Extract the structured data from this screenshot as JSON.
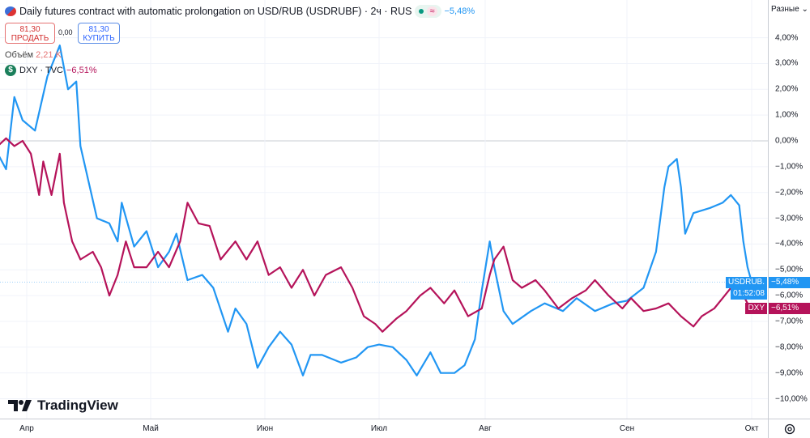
{
  "header": {
    "title": "Daily futures contract with automatic prolongation on USD/RUB (USDRUBF) · 2ч · RUS",
    "change": "−5,48%",
    "approx_symbol": "≈",
    "sell": {
      "price": "81,30",
      "label": "ПРОДАТЬ"
    },
    "spread": "0,00",
    "buy": {
      "price": "81,30",
      "label": "КУПИТЬ"
    },
    "volume_label": "Объём",
    "volume_value": "2,21 K",
    "compare": {
      "icon": "dollar-icon",
      "symbol_text": "$",
      "label": "DXY · TVC",
      "change": "−6,51%"
    }
  },
  "scale_mode": "Разные",
  "logo": "TradingView",
  "colors": {
    "usdrub": "#2196f3",
    "dxy": "#b5135a",
    "grid": "#f0f3fa"
  },
  "chart_data": {
    "type": "line",
    "ylabel": "",
    "ylim": [
      -10.5,
      4.5
    ],
    "y_ticks": [
      "4,00%",
      "3,00%",
      "2,00%",
      "1,00%",
      "0,00%",
      "−1,00%",
      "−2,00%",
      "−3,00%",
      "−4,00%",
      "−5,00%",
      "−6,00%",
      "−7,00%",
      "−8,00%",
      "−9,00%",
      "−10,00%"
    ],
    "y_tick_values": [
      4,
      3,
      2,
      1,
      0,
      -1,
      -2,
      -3,
      -4,
      -5,
      -6,
      -7,
      -8,
      -9,
      -10
    ],
    "x_ticks": [
      "Апр",
      "Май",
      "Июн",
      "Июл",
      "Авг",
      "Сен",
      "Окт"
    ],
    "x_tick_dates": [
      "04-01",
      "05-01",
      "06-01",
      "07-01",
      "08-01",
      "09-01",
      "10-01"
    ],
    "grid": true,
    "series": [
      {
        "name": "USDRUB.",
        "color": "#2196f3",
        "last_label": "−5,48%",
        "last_time": "01:52:08",
        "points": [
          [
            "03-25",
            -0.5
          ],
          [
            "03-27",
            -1.1
          ],
          [
            "03-29",
            1.7
          ],
          [
            "03-31",
            0.8
          ],
          [
            "04-03",
            0.4
          ],
          [
            "04-06",
            2.5
          ],
          [
            "04-09",
            3.7
          ],
          [
            "04-11",
            2.0
          ],
          [
            "04-13",
            2.3
          ],
          [
            "04-14",
            -0.2
          ],
          [
            "04-16",
            -1.6
          ],
          [
            "04-18",
            -3.0
          ],
          [
            "04-21",
            -3.2
          ],
          [
            "04-23",
            -3.9
          ],
          [
            "04-24",
            -2.4
          ],
          [
            "04-27",
            -4.1
          ],
          [
            "04-30",
            -3.5
          ],
          [
            "05-03",
            -4.9
          ],
          [
            "05-06",
            -4.3
          ],
          [
            "05-08",
            -3.6
          ],
          [
            "05-11",
            -5.4
          ],
          [
            "05-15",
            -5.2
          ],
          [
            "05-18",
            -5.7
          ],
          [
            "05-22",
            -7.4
          ],
          [
            "05-24",
            -6.5
          ],
          [
            "05-27",
            -7.1
          ],
          [
            "05-30",
            -8.8
          ],
          [
            "06-02",
            -8.0
          ],
          [
            "06-05",
            -7.4
          ],
          [
            "06-08",
            -7.9
          ],
          [
            "06-11",
            -9.1
          ],
          [
            "06-13",
            -8.3
          ],
          [
            "06-16",
            -8.3
          ],
          [
            "06-21",
            -8.6
          ],
          [
            "06-25",
            -8.4
          ],
          [
            "06-28",
            -8.0
          ],
          [
            "07-01",
            -7.9
          ],
          [
            "07-05",
            -8.0
          ],
          [
            "07-09",
            -8.5
          ],
          [
            "07-12",
            -9.1
          ],
          [
            "07-16",
            -8.2
          ],
          [
            "07-19",
            -9.0
          ],
          [
            "07-23",
            -9.0
          ],
          [
            "07-26",
            -8.7
          ],
          [
            "07-29",
            -7.7
          ],
          [
            "07-31",
            -5.8
          ],
          [
            "08-02",
            -3.9
          ],
          [
            "08-03",
            -4.9
          ],
          [
            "08-05",
            -6.6
          ],
          [
            "08-07",
            -7.1
          ],
          [
            "08-11",
            -6.6
          ],
          [
            "08-14",
            -6.3
          ],
          [
            "08-18",
            -6.6
          ],
          [
            "08-21",
            -6.1
          ],
          [
            "08-25",
            -6.6
          ],
          [
            "08-29",
            -6.3
          ],
          [
            "09-01",
            -6.2
          ],
          [
            "09-05",
            -5.7
          ],
          [
            "09-08",
            -4.3
          ],
          [
            "09-10",
            -1.8
          ],
          [
            "09-11",
            -1.0
          ],
          [
            "09-13",
            -0.7
          ],
          [
            "09-14",
            -1.8
          ],
          [
            "09-15",
            -3.6
          ],
          [
            "09-17",
            -2.8
          ],
          [
            "09-21",
            -2.6
          ],
          [
            "09-24",
            -2.4
          ],
          [
            "09-26",
            -2.1
          ],
          [
            "09-28",
            -2.5
          ],
          [
            "09-29",
            -3.9
          ],
          [
            "09-30",
            -4.9
          ],
          [
            "10-01",
            -5.48
          ]
        ]
      },
      {
        "name": "DXY",
        "color": "#b5135a",
        "last_label": "−6,51%",
        "points": [
          [
            "03-25",
            -0.2
          ],
          [
            "03-27",
            0.1
          ],
          [
            "03-29",
            -0.2
          ],
          [
            "03-31",
            0.0
          ],
          [
            "04-02",
            -0.5
          ],
          [
            "04-04",
            -2.1
          ],
          [
            "04-05",
            -0.8
          ],
          [
            "04-07",
            -2.1
          ],
          [
            "04-09",
            -0.5
          ],
          [
            "04-10",
            -2.4
          ],
          [
            "04-12",
            -3.9
          ],
          [
            "04-14",
            -4.6
          ],
          [
            "04-17",
            -4.3
          ],
          [
            "04-19",
            -4.9
          ],
          [
            "04-21",
            -6.0
          ],
          [
            "04-23",
            -5.2
          ],
          [
            "04-25",
            -3.9
          ],
          [
            "04-27",
            -4.9
          ],
          [
            "04-30",
            -4.9
          ],
          [
            "05-03",
            -4.3
          ],
          [
            "05-06",
            -4.9
          ],
          [
            "05-09",
            -3.9
          ],
          [
            "05-11",
            -2.4
          ],
          [
            "05-14",
            -3.2
          ],
          [
            "05-17",
            -3.3
          ],
          [
            "05-20",
            -4.6
          ],
          [
            "05-24",
            -3.9
          ],
          [
            "05-27",
            -4.6
          ],
          [
            "05-30",
            -3.9
          ],
          [
            "06-02",
            -5.2
          ],
          [
            "06-05",
            -4.9
          ],
          [
            "06-08",
            -5.7
          ],
          [
            "06-11",
            -5.0
          ],
          [
            "06-14",
            -6.0
          ],
          [
            "06-17",
            -5.2
          ],
          [
            "06-21",
            -4.9
          ],
          [
            "06-24",
            -5.7
          ],
          [
            "06-27",
            -6.8
          ],
          [
            "06-30",
            -7.1
          ],
          [
            "07-02",
            -7.4
          ],
          [
            "07-06",
            -6.9
          ],
          [
            "07-09",
            -6.6
          ],
          [
            "07-13",
            -6.0
          ],
          [
            "07-16",
            -5.7
          ],
          [
            "07-20",
            -6.3
          ],
          [
            "07-23",
            -5.8
          ],
          [
            "07-27",
            -6.8
          ],
          [
            "07-31",
            -6.5
          ],
          [
            "08-02",
            -5.2
          ],
          [
            "08-03",
            -4.6
          ],
          [
            "08-05",
            -4.1
          ],
          [
            "08-07",
            -5.4
          ],
          [
            "08-09",
            -5.7
          ],
          [
            "08-12",
            -5.4
          ],
          [
            "08-14",
            -5.8
          ],
          [
            "08-17",
            -6.5
          ],
          [
            "08-20",
            -6.1
          ],
          [
            "08-23",
            -5.8
          ],
          [
            "08-25",
            -5.4
          ],
          [
            "08-28",
            -6.0
          ],
          [
            "08-31",
            -6.5
          ],
          [
            "09-02",
            -6.1
          ],
          [
            "09-05",
            -6.6
          ],
          [
            "09-08",
            -6.5
          ],
          [
            "09-11",
            -6.3
          ],
          [
            "09-14",
            -6.8
          ],
          [
            "09-17",
            -7.2
          ],
          [
            "09-19",
            -6.8
          ],
          [
            "09-22",
            -6.5
          ],
          [
            "09-24",
            -6.1
          ],
          [
            "09-27",
            -5.5
          ],
          [
            "09-29",
            -6.0
          ],
          [
            "09-30",
            -6.3
          ],
          [
            "10-01",
            -6.51
          ]
        ]
      }
    ]
  }
}
